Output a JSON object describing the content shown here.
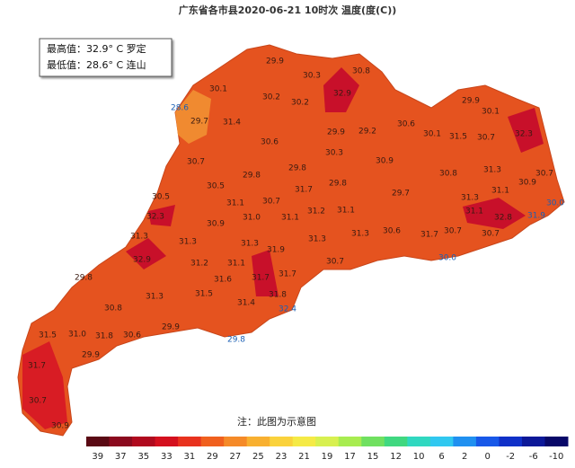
{
  "header": {
    "title": "广东省各市县2020-06-21 10时次 温度(度(C))"
  },
  "summary": {
    "max": "最高值：32.9° C 罗定",
    "min": "最低值：28.6° C 连山"
  },
  "map": {
    "stations": [
      "29.9",
      "30.3",
      "30.8",
      "32.9",
      "30.1",
      "30.2",
      "30.2",
      "28.6",
      "29.7",
      "31.4",
      "29.9",
      "30.1",
      "30.6",
      "30.1",
      "31.5",
      "30.7",
      "32.3",
      "29.9",
      "29.2",
      "30.6",
      "30.3",
      "30.9",
      "30.7",
      "29.8",
      "29.8",
      "31.3",
      "30.7",
      "30.8",
      "30.5",
      "31.7",
      "29.8",
      "30.9",
      "30.5",
      "31.1",
      "30.7",
      "29.7",
      "31.1",
      "31.3",
      "30.0",
      "31.1",
      "31.0",
      "32.3",
      "31.2",
      "31.1",
      "32.8",
      "31.9",
      "30.9",
      "31.1",
      "31.3",
      "31.3",
      "31.3",
      "31.3",
      "31.3",
      "30.6",
      "31.7",
      "30.7",
      "30.7",
      "31.9",
      "30.7",
      "30.0",
      "32.9",
      "31.2",
      "31.1",
      "29.8",
      "31.6",
      "31.7",
      "31.7",
      "31.3",
      "31.5",
      "31.8",
      "30.8",
      "31.4",
      "32.4",
      "31.5",
      "31.0",
      "31.8",
      "30.6",
      "29.9",
      "29.8",
      "29.9",
      "31.7",
      "30.7",
      "30.9"
    ]
  },
  "note": "注：此图为示意图",
  "legend": {
    "labels": [
      39,
      37,
      35,
      33,
      31,
      29,
      27,
      25,
      23,
      21,
      19,
      17,
      15,
      12,
      10,
      6,
      2,
      0,
      -2,
      -6,
      -10
    ],
    "colors": [
      "#5a0a14",
      "#8b0a1e",
      "#b00a1e",
      "#d4101e",
      "#e8321e",
      "#f0601e",
      "#f58a28",
      "#f8b030",
      "#fad23c",
      "#f5ea46",
      "#d8f050",
      "#a8ec50",
      "#70e060",
      "#40d880",
      "#30d8c0",
      "#30c8f0",
      "#2090f0",
      "#1858e8",
      "#1030c8",
      "#0c1898",
      "#080868"
    ]
  }
}
